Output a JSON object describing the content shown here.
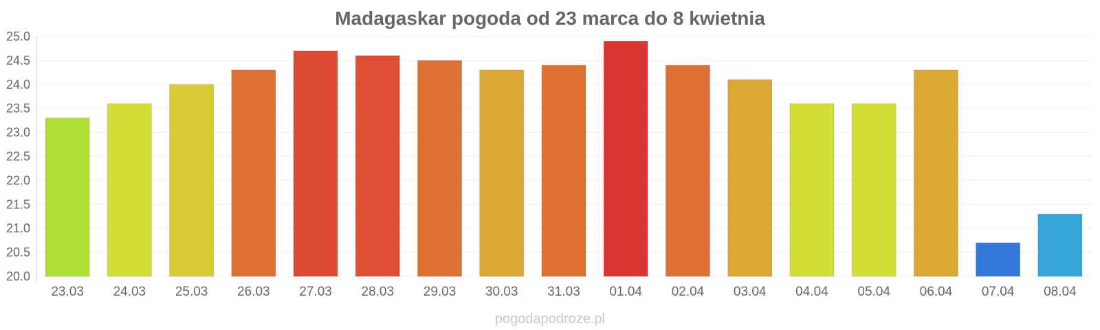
{
  "chart_data": {
    "type": "bar",
    "title": "Madagaskar pogoda od 23 marca do 8 kwietnia",
    "xlabel": "",
    "ylabel": "",
    "ylim": [
      20.0,
      25.0
    ],
    "y_ticks": [
      "20.0",
      "20.5",
      "21.0",
      "21.5",
      "22.0",
      "22.5",
      "23.0",
      "23.5",
      "24.0",
      "24.5",
      "25.0"
    ],
    "grid": true,
    "categories": [
      "23.03",
      "24.03",
      "25.03",
      "26.03",
      "27.03",
      "28.03",
      "29.03",
      "30.03",
      "31.03",
      "01.04",
      "02.04",
      "03.04",
      "04.04",
      "05.04",
      "06.04",
      "07.04",
      "08.04"
    ],
    "values": [
      23.3,
      23.6,
      24.0,
      24.3,
      24.7,
      24.6,
      24.5,
      24.3,
      24.4,
      24.9,
      24.4,
      24.1,
      23.6,
      23.6,
      24.3,
      20.7,
      21.3
    ],
    "colors": [
      "#b0de33",
      "#d1de36",
      "#dbc934",
      "#df7034",
      "#de4b33",
      "#de4e33",
      "#df7034",
      "#dda734",
      "#df7034",
      "#db3534",
      "#df7034",
      "#dda734",
      "#d1de36",
      "#d1de36",
      "#dda734",
      "#3478dc",
      "#34a6dc"
    ]
  },
  "watermark": "pogodapodroze.pl"
}
